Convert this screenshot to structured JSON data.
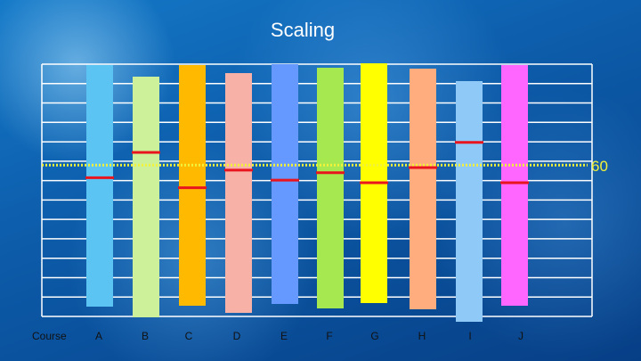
{
  "title": "Scaling",
  "chart_data": {
    "type": "bar",
    "title": "Scaling",
    "axis_label": "Course",
    "categories": [
      "A",
      "B",
      "C",
      "D",
      "E",
      "F",
      "G",
      "H",
      "I",
      "J"
    ],
    "bars": [
      {
        "name": "A",
        "color": "#5bc4f2",
        "top": 73,
        "bottom": 344,
        "mark": 55
      },
      {
        "name": "B",
        "color": "#cdf19a",
        "top": 86,
        "bottom": 356,
        "mark": 65
      },
      {
        "name": "C",
        "color": "#ffba00",
        "top": 73,
        "bottom": 343,
        "mark": 51
      },
      {
        "name": "D",
        "color": "#f8b1a6",
        "top": 82,
        "bottom": 351,
        "mark": 58
      },
      {
        "name": "E",
        "color": "#6699ff",
        "top": 72,
        "bottom": 341,
        "mark": 54
      },
      {
        "name": "F",
        "color": "#a6e84f",
        "top": 76,
        "bottom": 346,
        "mark": 57
      },
      {
        "name": "G",
        "color": "#ffff00",
        "top": 71,
        "bottom": 340,
        "mark": 53
      },
      {
        "name": "H",
        "color": "#ffac7f",
        "top": 77,
        "bottom": 347,
        "mark": 59
      },
      {
        "name": "I",
        "color": "#8ec9f7",
        "top": 91,
        "bottom": 361,
        "mark": 69
      },
      {
        "name": "J",
        "color": "#ff66ff",
        "top": 73,
        "bottom": 343,
        "mark": 53
      }
    ],
    "reference_line": {
      "value": 60,
      "label": "60",
      "color": "#f2f23a"
    },
    "mark_color": "#e8141e",
    "grid": true
  }
}
